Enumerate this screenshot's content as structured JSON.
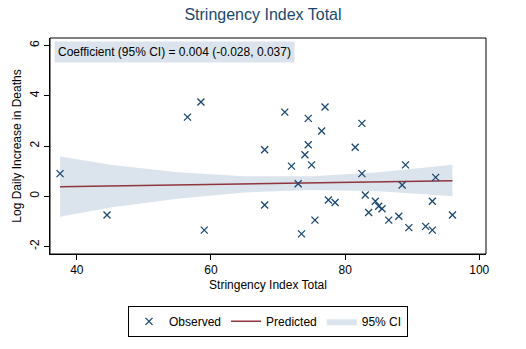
{
  "chart_data": {
    "type": "scatter",
    "title": "Stringency Index Total",
    "x_label": "Stringency Index Total",
    "y_label": "Log Daily Increase in Deaths",
    "annotation": "Coefficient (95% CI) = 0.004 (-0.028, 0.037)",
    "xlim": [
      36,
      101
    ],
    "xticks": [
      40,
      60,
      80,
      100
    ],
    "ylim": [
      -2.3,
      6.3
    ],
    "yticks": [
      -2,
      0,
      2,
      4,
      6
    ],
    "grid": false,
    "legend": "bottom",
    "series": [
      {
        "name": "Observed",
        "type": "scatter",
        "marker": "x",
        "color": "#1a476f",
        "x": [
          37.5,
          44.5,
          56.5,
          58.5,
          59,
          68,
          68,
          71,
          72,
          73,
          73.5,
          74,
          74.5,
          74.5,
          75,
          75.5,
          76.5,
          77,
          77.5,
          78.5,
          81.5,
          82.5,
          82.5,
          83,
          83.5,
          84.5,
          85,
          85.5,
          86.5,
          88,
          88.5,
          89,
          89.5,
          92,
          93,
          93,
          93.5,
          96
        ],
        "values": [
          0.9,
          -0.75,
          3.15,
          3.75,
          -1.35,
          1.85,
          -0.35,
          3.35,
          1.2,
          0.5,
          -1.5,
          1.65,
          2.05,
          3.1,
          1.25,
          -0.95,
          2.6,
          3.55,
          -0.15,
          -0.25,
          1.95,
          2.9,
          0.9,
          0.05,
          -0.65,
          -0.2,
          -0.4,
          -0.5,
          -0.95,
          -0.8,
          0.45,
          1.25,
          -1.25,
          -1.2,
          -0.2,
          -1.35,
          0.75,
          -0.75
        ]
      },
      {
        "name": "Predicted",
        "type": "line",
        "color": "#90353b",
        "x": [
          37.5,
          45,
          55,
          65,
          75,
          85,
          96
        ],
        "values": [
          0.38,
          0.41,
          0.45,
          0.49,
          0.53,
          0.57,
          0.62
        ]
      },
      {
        "name": "95% CI",
        "type": "band",
        "color": "#dbe4ec",
        "x": [
          37.5,
          45,
          55,
          65,
          75,
          85,
          96
        ],
        "lower": [
          -0.82,
          -0.45,
          -0.1,
          0.15,
          0.25,
          0.2,
          0.0
        ],
        "upper": [
          1.58,
          1.25,
          0.95,
          0.8,
          0.8,
          0.95,
          1.25
        ]
      }
    ]
  }
}
